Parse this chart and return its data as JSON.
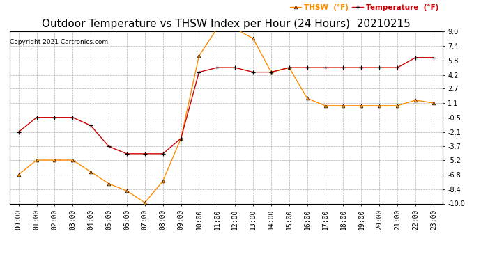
{
  "title": "Outdoor Temperature vs THSW Index per Hour (24 Hours)  20210215",
  "copyright": "Copyright 2021 Cartronics.com",
  "hours": [
    "00:00",
    "01:00",
    "02:00",
    "03:00",
    "04:00",
    "05:00",
    "06:00",
    "07:00",
    "08:00",
    "09:00",
    "10:00",
    "11:00",
    "12:00",
    "13:00",
    "14:00",
    "15:00",
    "16:00",
    "17:00",
    "18:00",
    "19:00",
    "20:00",
    "21:00",
    "22:00",
    "23:00"
  ],
  "temperature": [
    -2.1,
    -0.5,
    -0.5,
    -0.5,
    -1.4,
    -3.7,
    -4.5,
    -4.5,
    -4.5,
    -2.8,
    4.5,
    5.0,
    5.0,
    4.5,
    4.5,
    5.0,
    5.0,
    5.0,
    5.0,
    5.0,
    5.0,
    5.0,
    6.1,
    6.1
  ],
  "thsw": [
    -6.8,
    -5.2,
    -5.2,
    -5.2,
    -6.5,
    -7.8,
    -8.6,
    -9.9,
    -7.5,
    -2.8,
    6.3,
    9.3,
    9.3,
    8.2,
    4.5,
    5.0,
    1.6,
    0.8,
    0.8,
    0.8,
    0.8,
    0.8,
    1.4,
    1.1
  ],
  "temp_color": "#CC0000",
  "thsw_color": "#FF8C00",
  "marker_color": "#000000",
  "bg_color": "#FFFFFF",
  "grid_color": "#AAAAAA",
  "ylim": [
    -10.0,
    9.0
  ],
  "yticks": [
    -10.0,
    -8.4,
    -6.8,
    -5.2,
    -3.7,
    -2.1,
    -0.5,
    1.1,
    2.7,
    4.2,
    5.8,
    7.4,
    9.0
  ],
  "title_fontsize": 11,
  "label_fontsize": 7,
  "legend_thsw": "THSW  (°F)",
  "legend_temp": "Temperature  (°F)"
}
